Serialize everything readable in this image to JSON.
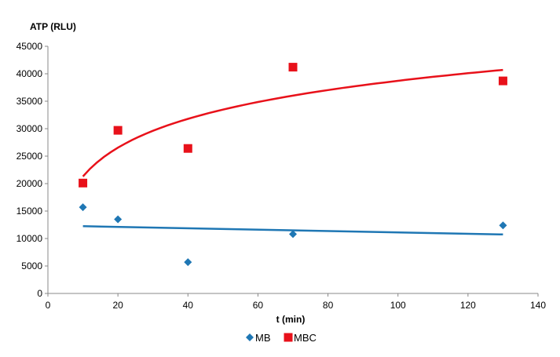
{
  "chart_data": {
    "type": "scatter",
    "title": "",
    "xlabel": "t (min)",
    "ylabel": "ATP (RLU)",
    "xlim": [
      0,
      140
    ],
    "ylim": [
      0,
      45000
    ],
    "xticks": [
      0,
      20,
      40,
      60,
      80,
      100,
      120,
      140
    ],
    "yticks": [
      0,
      5000,
      10000,
      15000,
      20000,
      25000,
      30000,
      35000,
      40000,
      45000
    ],
    "grid": false,
    "legend_position": "bottom",
    "series": [
      {
        "name": "MB",
        "marker": "diamond",
        "color": "#1f77b4",
        "x": [
          10,
          20,
          40,
          70,
          130
        ],
        "y": [
          15700,
          13500,
          5700,
          10800,
          12400
        ],
        "trendline": {
          "type": "linear",
          "x_range": [
            10,
            130
          ],
          "y_range": [
            12250,
            10750
          ]
        }
      },
      {
        "name": "MBC",
        "marker": "square",
        "color": "#e8111a",
        "x": [
          10,
          20,
          40,
          70,
          130
        ],
        "y": [
          20100,
          29700,
          26400,
          41200,
          38700
        ],
        "trendline": {
          "type": "logarithmic",
          "x_range": [
            10,
            130
          ],
          "y_range": [
            21300,
            40700
          ]
        }
      }
    ]
  }
}
